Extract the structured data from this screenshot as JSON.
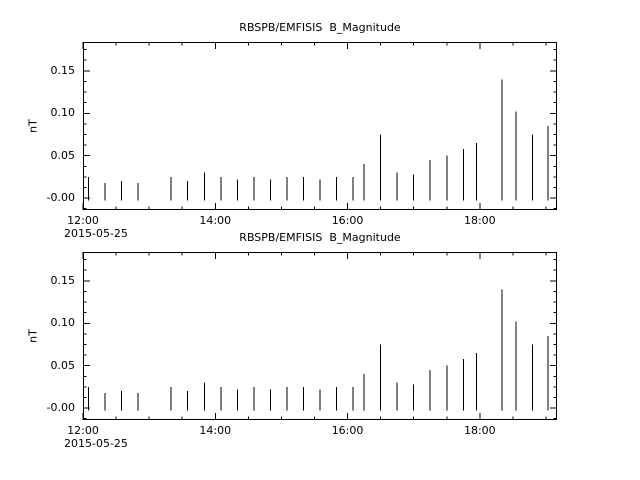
{
  "page": {
    "background": "#ffffff",
    "foreground": "#000000"
  },
  "chart_data": [
    {
      "type": "bar",
      "title": "RBSPB/EMFISIS  B_Magnitude",
      "ylabel": "nT",
      "date_label": "2015-05-25",
      "ylim": [
        -0.014,
        0.184
      ],
      "xlim_minutes": [
        720,
        1150
      ],
      "yticks": [
        {
          "value": 0.0,
          "label": "-0.00"
        },
        {
          "value": 0.05,
          "label": "0.05"
        },
        {
          "value": 0.1,
          "label": "0.10"
        },
        {
          "value": 0.15,
          "label": "0.15"
        }
      ],
      "y_minor_step": 0.0125,
      "xticks": [
        {
          "time": "12:00",
          "label": "12:00"
        },
        {
          "time": "14:00",
          "label": "14:00"
        },
        {
          "time": "16:00",
          "label": "16:00"
        },
        {
          "time": "18:00",
          "label": "18:00"
        }
      ],
      "x_minor_step_minutes": 30,
      "bar_base": -0.003,
      "points": [
        {
          "time": "12:05",
          "value": 0.025
        },
        {
          "time": "12:20",
          "value": 0.018
        },
        {
          "time": "12:35",
          "value": 0.02
        },
        {
          "time": "12:50",
          "value": 0.018
        },
        {
          "time": "13:20",
          "value": 0.025
        },
        {
          "time": "13:35",
          "value": 0.02
        },
        {
          "time": "13:50",
          "value": 0.03
        },
        {
          "time": "14:05",
          "value": 0.025
        },
        {
          "time": "14:20",
          "value": 0.022
        },
        {
          "time": "14:35",
          "value": 0.025
        },
        {
          "time": "14:50",
          "value": 0.022
        },
        {
          "time": "15:05",
          "value": 0.025
        },
        {
          "time": "15:20",
          "value": 0.025
        },
        {
          "time": "15:35",
          "value": 0.022
        },
        {
          "time": "15:50",
          "value": 0.025
        },
        {
          "time": "16:05",
          "value": 0.025
        },
        {
          "time": "16:15",
          "value": 0.04
        },
        {
          "time": "16:30",
          "value": 0.075
        },
        {
          "time": "16:45",
          "value": 0.03
        },
        {
          "time": "17:00",
          "value": 0.028
        },
        {
          "time": "17:15",
          "value": 0.045
        },
        {
          "time": "17:30",
          "value": 0.05
        },
        {
          "time": "17:45",
          "value": 0.058
        },
        {
          "time": "17:57",
          "value": 0.065
        },
        {
          "time": "18:20",
          "value": 0.14
        },
        {
          "time": "18:33",
          "value": 0.102
        },
        {
          "time": "18:48",
          "value": 0.075
        },
        {
          "time": "19:02",
          "value": 0.085
        }
      ]
    },
    {
      "type": "bar",
      "title": "RBSPB/EMFISIS  B_Magnitude",
      "ylabel": "nT",
      "date_label": "2015-05-25",
      "ylim": [
        -0.014,
        0.184
      ],
      "xlim_minutes": [
        720,
        1150
      ],
      "yticks": [
        {
          "value": 0.0,
          "label": "-0.00"
        },
        {
          "value": 0.05,
          "label": "0.05"
        },
        {
          "value": 0.1,
          "label": "0.10"
        },
        {
          "value": 0.15,
          "label": "0.15"
        }
      ],
      "y_minor_step": 0.0125,
      "xticks": [
        {
          "time": "12:00",
          "label": "12:00"
        },
        {
          "time": "14:00",
          "label": "14:00"
        },
        {
          "time": "16:00",
          "label": "16:00"
        },
        {
          "time": "18:00",
          "label": "18:00"
        }
      ],
      "x_minor_step_minutes": 30,
      "bar_base": -0.003,
      "points": [
        {
          "time": "12:05",
          "value": 0.025
        },
        {
          "time": "12:20",
          "value": 0.018
        },
        {
          "time": "12:35",
          "value": 0.02
        },
        {
          "time": "12:50",
          "value": 0.018
        },
        {
          "time": "13:20",
          "value": 0.025
        },
        {
          "time": "13:35",
          "value": 0.02
        },
        {
          "time": "13:50",
          "value": 0.03
        },
        {
          "time": "14:05",
          "value": 0.025
        },
        {
          "time": "14:20",
          "value": 0.022
        },
        {
          "time": "14:35",
          "value": 0.025
        },
        {
          "time": "14:50",
          "value": 0.022
        },
        {
          "time": "15:05",
          "value": 0.025
        },
        {
          "time": "15:20",
          "value": 0.025
        },
        {
          "time": "15:35",
          "value": 0.022
        },
        {
          "time": "15:50",
          "value": 0.025
        },
        {
          "time": "16:05",
          "value": 0.025
        },
        {
          "time": "16:15",
          "value": 0.04
        },
        {
          "time": "16:30",
          "value": 0.075
        },
        {
          "time": "16:45",
          "value": 0.03
        },
        {
          "time": "17:00",
          "value": 0.028
        },
        {
          "time": "17:15",
          "value": 0.045
        },
        {
          "time": "17:30",
          "value": 0.05
        },
        {
          "time": "17:45",
          "value": 0.058
        },
        {
          "time": "17:57",
          "value": 0.065
        },
        {
          "time": "18:20",
          "value": 0.14
        },
        {
          "time": "18:33",
          "value": 0.102
        },
        {
          "time": "18:48",
          "value": 0.075
        },
        {
          "time": "19:02",
          "value": 0.085
        }
      ]
    }
  ]
}
